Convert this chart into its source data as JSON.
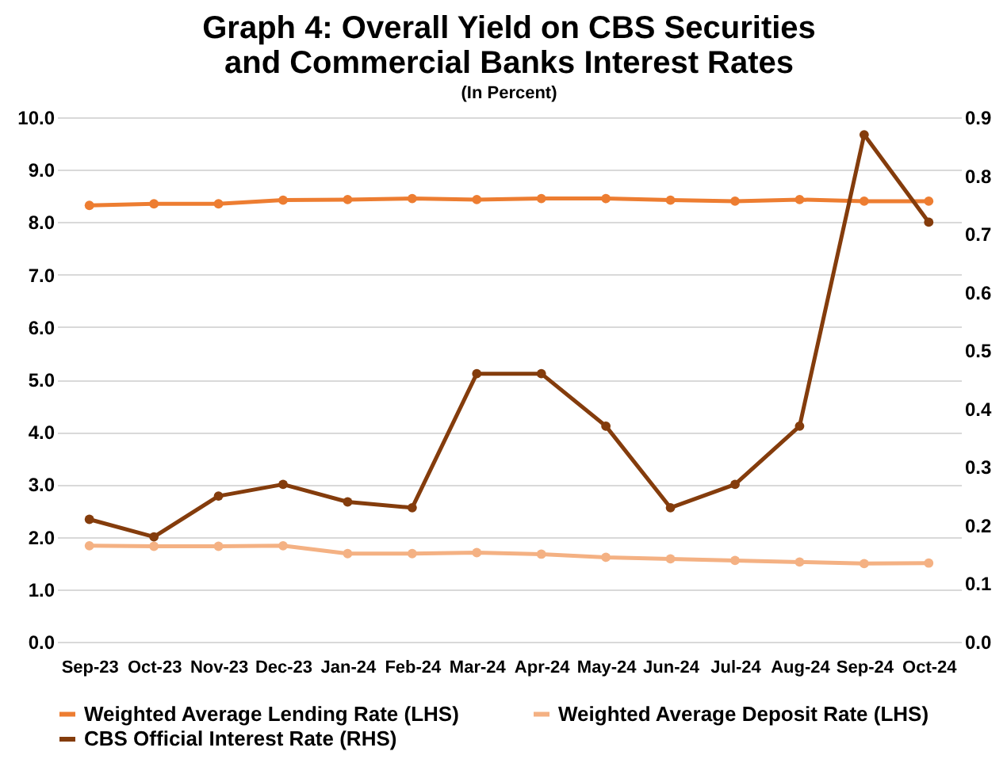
{
  "chart_data": {
    "type": "line",
    "title": "Graph 4: Overall Yield on CBS Securities and Commercial Banks Interest Rates",
    "subtitle": "(In Percent)",
    "categories": [
      "Sep-23",
      "Oct-23",
      "Nov-23",
      "Dec-23",
      "Jan-24",
      "Feb-24",
      "Mar-24",
      "Apr-24",
      "May-24",
      "Jun-24",
      "Jul-24",
      "Aug-24",
      "Sep-24",
      "Oct-24"
    ],
    "series": [
      {
        "name": "Weighted Average Lending Rate (LHS)",
        "color": "#ed7d31",
        "values": [
          8.32,
          8.35,
          8.35,
          8.42,
          8.43,
          8.45,
          8.43,
          8.45,
          8.45,
          8.42,
          8.4,
          8.43,
          8.4,
          8.4
        ]
      },
      {
        "name": "Weighted Average Deposit Rate (LHS)",
        "color": "#f4b183",
        "values": [
          1.83,
          1.82,
          1.82,
          1.83,
          1.68,
          1.68,
          1.7,
          1.67,
          1.61,
          1.58,
          1.55,
          1.52,
          1.49,
          1.5
        ]
      },
      {
        "name": "CBS Official Interest Rate (RHS)",
        "color": "#843c0c",
        "axis": "y2",
        "values": [
          0.21,
          0.18,
          0.25,
          0.27,
          0.24,
          0.23,
          0.46,
          0.46,
          0.37,
          0.23,
          0.27,
          0.37,
          0.87,
          0.72
        ]
      }
    ],
    "ylim": [
      0,
      10
    ],
    "yticks": [
      {
        "value": 0,
        "label": "0.0"
      },
      {
        "value": 1,
        "label": "1.0"
      },
      {
        "value": 2,
        "label": "2.0"
      },
      {
        "value": 3,
        "label": "3.0"
      },
      {
        "value": 4,
        "label": "4.0"
      },
      {
        "value": 5,
        "label": "5.0"
      },
      {
        "value": 6,
        "label": "6.0"
      },
      {
        "value": 7,
        "label": "7.0"
      },
      {
        "value": 8,
        "label": "8.0"
      },
      {
        "value": 9,
        "label": "9.0"
      },
      {
        "value": 10,
        "label": "10.0"
      }
    ],
    "y2lim": [
      0,
      0.9
    ],
    "y2ticks": [
      {
        "value": 0,
        "label": "0.0"
      },
      {
        "value": 0.1,
        "label": "0.1"
      },
      {
        "value": 0.2,
        "label": "0.2"
      },
      {
        "value": 0.3,
        "label": "0.3"
      },
      {
        "value": 0.4,
        "label": "0.4"
      },
      {
        "value": 0.5,
        "label": "0.5"
      },
      {
        "value": 0.6,
        "label": "0.6"
      },
      {
        "value": 0.7,
        "label": "0.7"
      },
      {
        "value": 0.8,
        "label": "0.8"
      },
      {
        "value": 0.9,
        "label": "0.9"
      }
    ],
    "grid": "y",
    "legend": "bottom",
    "marker": "circle",
    "line_style": "solid"
  }
}
